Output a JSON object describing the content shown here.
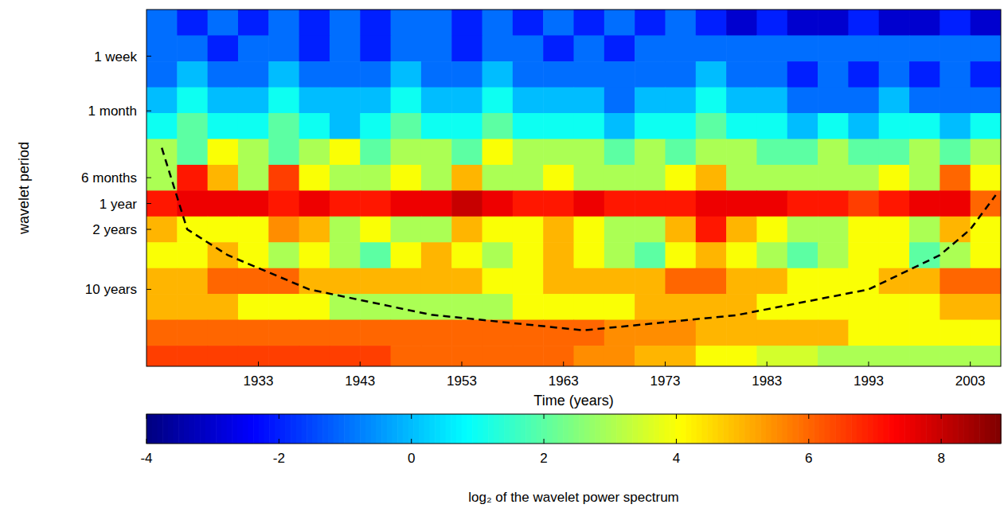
{
  "chart_data": {
    "type": "heatmap",
    "x_label": "Time (years)",
    "y_label": "wavelet period",
    "log": "y",
    "xlim": [
      1922,
      2006
    ],
    "xticks": [
      1933,
      1943,
      1953,
      1963,
      1973,
      1983,
      1993,
      2003
    ],
    "ylim": [
      0.0055,
      78.8
    ],
    "yticks": [
      {
        "value": 0.0192,
        "label": "1 week"
      },
      {
        "value": 0.0833,
        "label": "1 month"
      },
      {
        "value": 0.5,
        "label": "6 months"
      },
      {
        "value": 1,
        "label": "1 year"
      },
      {
        "value": 2,
        "label": "2 years"
      },
      {
        "value": 10,
        "label": "10 years"
      }
    ],
    "x_edges": [
      1922,
      1925,
      1928,
      1931,
      1934,
      1937,
      1940,
      1943,
      1946,
      1949,
      1952,
      1955,
      1958,
      1961,
      1964,
      1967,
      1970,
      1973,
      1976,
      1979,
      1982,
      1985,
      1988,
      1991,
      1994,
      1997,
      2000,
      2003,
      2006
    ],
    "y_edges": [
      0.0055,
      0.011,
      0.0221,
      0.0442,
      0.0884,
      0.177,
      0.354,
      0.707,
      1.414,
      2.83,
      5.66,
      11.3,
      22.6,
      45.3,
      78.8
    ],
    "values": [
      [
        -1,
        -2,
        -1,
        -2,
        -1,
        -2,
        -1,
        -2,
        -1,
        -1,
        -2,
        -1,
        -2,
        -1,
        -2,
        -1,
        -2,
        -1,
        -2,
        -3,
        -2,
        -3,
        -3,
        -2,
        -3,
        -3,
        -2,
        -3
      ],
      [
        -1,
        -1,
        -2,
        -1,
        -1,
        -2,
        -1,
        -2,
        -1,
        -1,
        -2,
        -1,
        -1,
        -2,
        -1,
        -2,
        -1,
        -1,
        -1,
        -1,
        -1,
        -1,
        -1,
        -1,
        -1,
        -1,
        -1,
        -1
      ],
      [
        -1,
        0,
        -1,
        -1,
        0,
        -1,
        -1,
        -1,
        0,
        -1,
        -1,
        0,
        -1,
        -1,
        -1,
        -1,
        -1,
        -1,
        0,
        -1,
        -1,
        -2,
        -1,
        -2,
        -1,
        -2,
        -1,
        -2
      ],
      [
        0,
        1,
        0,
        0,
        1,
        0,
        0,
        0,
        1,
        0,
        0,
        1,
        0,
        0,
        0,
        -1,
        0,
        0,
        1,
        0,
        0,
        -1,
        -1,
        -1,
        0,
        -1,
        -1,
        -1
      ],
      [
        1,
        2,
        1,
        1,
        2,
        1,
        0,
        1,
        2,
        1,
        1,
        2,
        1,
        1,
        1,
        0,
        1,
        1,
        2,
        1,
        1,
        0,
        1,
        0,
        1,
        1,
        0,
        1
      ],
      [
        3,
        2,
        4,
        3,
        2,
        3,
        4,
        2,
        3,
        3,
        2,
        4,
        3,
        3,
        3,
        2,
        3,
        2,
        3,
        3,
        2,
        2,
        3,
        2,
        2,
        3,
        2,
        3
      ],
      [
        3,
        7,
        5,
        3,
        6.5,
        4,
        3,
        3,
        4,
        3,
        5,
        3,
        3,
        4,
        3,
        3,
        3,
        4,
        5,
        3,
        3,
        3,
        3,
        3,
        4,
        3,
        6,
        4
      ],
      [
        7,
        7.5,
        7.5,
        7.5,
        7,
        7.5,
        7,
        7,
        7.5,
        7.5,
        8,
        7.5,
        7,
        7,
        7.5,
        7,
        7,
        7,
        7.5,
        7.5,
        7.5,
        7,
        7,
        6.5,
        7,
        7.5,
        7.5,
        6
      ],
      [
        5,
        4,
        4,
        4,
        5.5,
        5,
        3,
        4,
        3,
        3,
        5,
        4,
        4,
        5,
        4,
        3,
        3,
        5,
        7,
        5,
        4,
        3,
        3,
        4,
        4,
        3,
        5,
        4
      ],
      [
        4,
        4,
        5,
        4,
        3,
        4,
        3,
        2,
        4,
        5,
        4,
        3,
        4,
        5,
        4,
        3,
        2,
        4,
        5,
        4,
        3,
        2,
        3,
        4,
        4,
        2,
        3,
        4
      ],
      [
        5,
        5,
        6,
        6,
        6,
        5,
        5,
        5,
        5,
        5,
        5,
        4,
        4,
        5,
        5,
        5,
        5,
        6,
        6,
        5,
        5,
        4,
        4,
        4,
        5,
        5,
        6,
        6
      ],
      [
        5,
        5,
        5,
        4,
        4,
        4,
        3,
        3,
        3,
        3,
        3,
        3,
        4,
        4,
        4,
        4,
        5,
        5,
        5,
        5,
        4,
        4,
        4,
        4,
        4,
        4,
        5,
        5
      ],
      [
        6,
        6,
        6,
        6,
        6,
        6,
        6,
        6,
        6,
        6,
        6,
        6,
        6,
        6,
        6,
        5.5,
        5.5,
        5.5,
        5,
        5,
        5,
        5,
        5,
        4,
        4,
        4,
        4,
        4
      ],
      [
        6.5,
        6.5,
        6.5,
        6.5,
        6.5,
        6.5,
        6.5,
        6.5,
        6,
        6,
        6,
        6,
        6,
        6,
        5.5,
        5.5,
        5,
        5,
        4,
        4,
        3.5,
        3.5,
        3,
        3,
        3,
        3,
        3,
        3
      ]
    ],
    "colorbar": {
      "range": [
        -4,
        8.9
      ],
      "ticks": [
        -4,
        -2,
        0,
        2,
        4,
        6,
        8
      ],
      "label": "log₂ of the wavelet power spectrum"
    },
    "coi": {
      "x": [
        1923.5,
        1926,
        1930,
        1938,
        1950,
        1965,
        1980,
        1993,
        2000,
        2003,
        2005.5
      ],
      "y": [
        0.225,
        2,
        4,
        10,
        19.8,
        30,
        20,
        10,
        4,
        2,
        0.8
      ],
      "line_style": "dashed",
      "color": "#000000"
    }
  }
}
